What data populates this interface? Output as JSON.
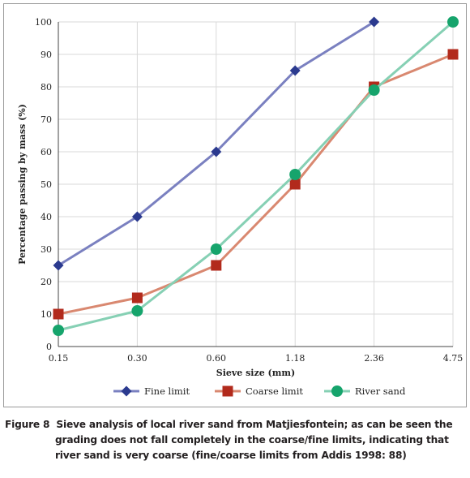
{
  "chart_data": {
    "type": "line",
    "title": "",
    "xlabel": "Sieve size (mm)",
    "ylabel": "Percentage passing by mass (%)",
    "categories": [
      "0.15",
      "0.30",
      "0.60",
      "1.18",
      "2.36",
      "4.75"
    ],
    "ylim": [
      0,
      100
    ],
    "yticks": [
      "0",
      "10",
      "20",
      "30",
      "40",
      "50",
      "60",
      "70",
      "80",
      "90",
      "100"
    ],
    "grid": true,
    "legend_position": "bottom",
    "series": [
      {
        "name": "Fine limit",
        "values": [
          25,
          40,
          60,
          85,
          100,
          null
        ],
        "color": "#7a80c0",
        "marker_color": "#2b3a8f",
        "marker": "diamond"
      },
      {
        "name": "Coarse limit",
        "values": [
          10,
          15,
          25,
          50,
          80,
          90
        ],
        "color": "#d98870",
        "marker_color": "#b22a1c",
        "marker": "square"
      },
      {
        "name": "River sand",
        "values": [
          5,
          11,
          30,
          53,
          79,
          100
        ],
        "color": "#86d0b4",
        "marker_color": "#16a46c",
        "marker": "circle"
      }
    ]
  },
  "caption": {
    "label": "Figure 8",
    "text": "Sieve analysis of local river sand from Matjiesfontein; as can be seen the grading does not fall completely in the coarse/fine limits, indicating that river sand is very coarse (fine/coarse limits from Addis 1998: 88)"
  }
}
